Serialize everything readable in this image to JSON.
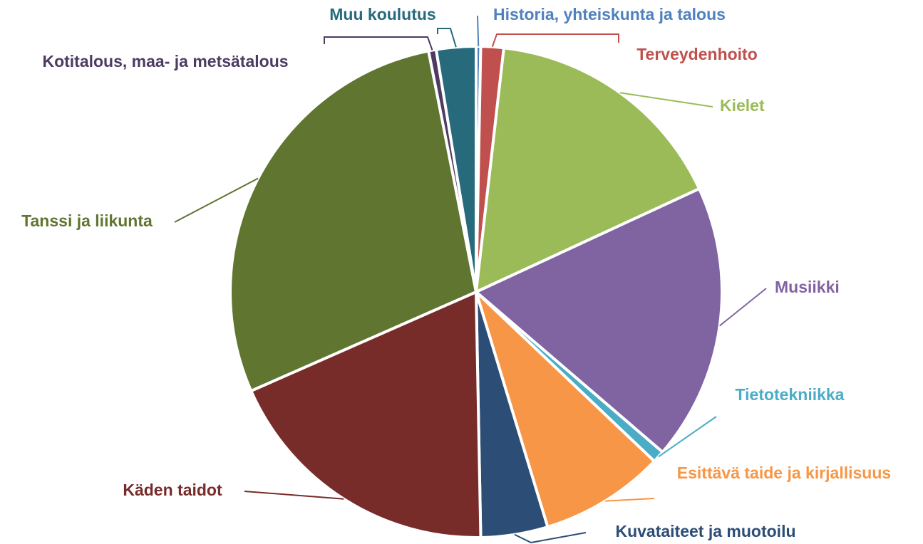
{
  "chart_data": {
    "type": "pie",
    "categories": [
      "Historia, yhteiskunta ja talous",
      "Terveydenhoito",
      "Kielet",
      "Musiikki",
      "Tietotekniikka",
      "Esittävä taide ja kirjallisuus",
      "Kuvataiteet ja muotoilu",
      "Käden taidot",
      "Tanssi ja liikunta",
      "Kotitalous, maa- ja metsätalous",
      "Muu koulutus"
    ],
    "values": [
      0.3,
      1.5,
      16.3,
      18.2,
      0.8,
      8.2,
      4.4,
      18.7,
      28.5,
      0.5,
      2.6
    ],
    "colors": [
      "#4f81bd",
      "#c0504d",
      "#9bbb59",
      "#8064a2",
      "#4bacc6",
      "#f79646",
      "#2c4d75",
      "#772c2a",
      "#5f7530",
      "#4d3b62",
      "#276a7c"
    ]
  }
}
